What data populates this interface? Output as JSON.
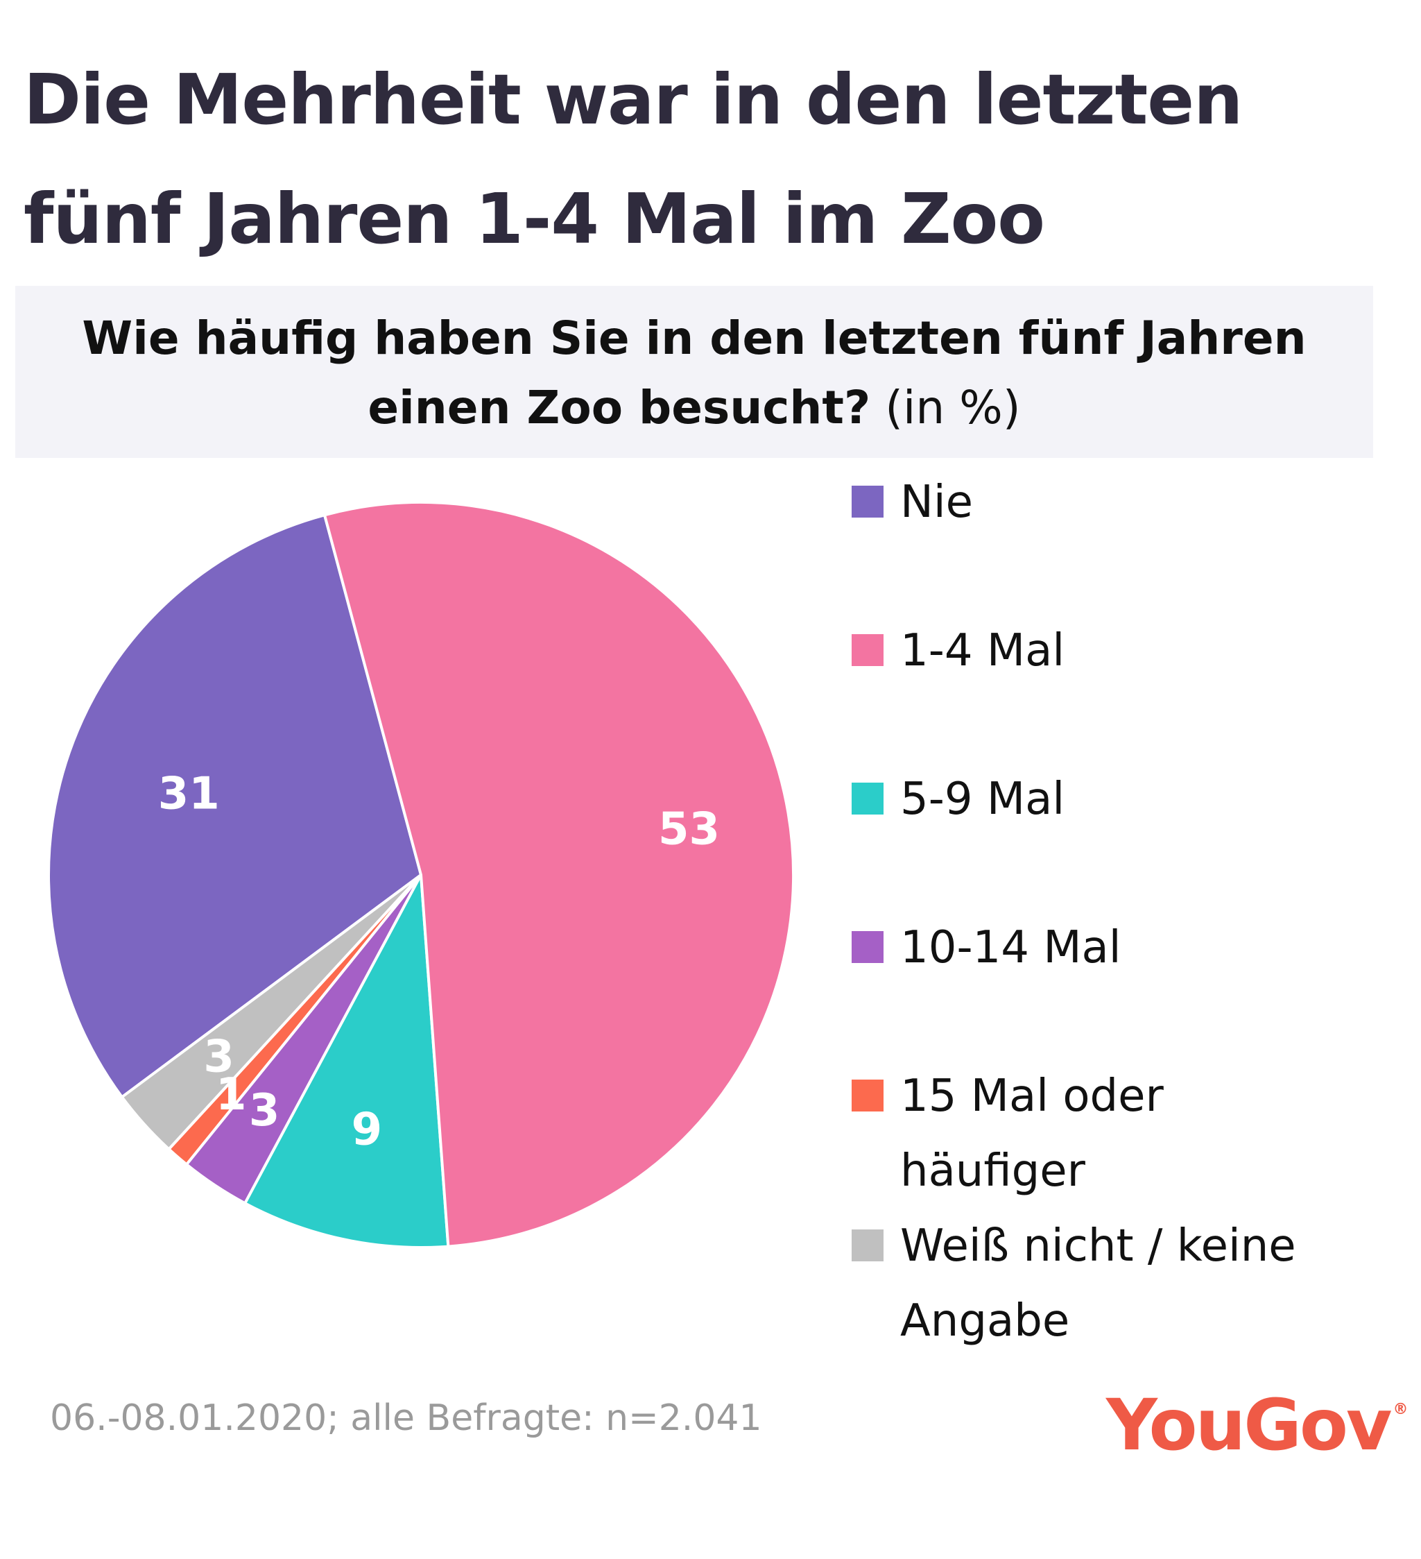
{
  "title": "Die Mehrheit war in den letzten fünf Jahren 1-4 Mal im Zoo",
  "question": {
    "text": "Wie häufig haben Sie in den letzten fünf Jahren einen Zoo besucht?",
    "unit": "(in %)"
  },
  "footer": "06.-08.01.2020; alle Befragte: n=2.041",
  "logo": {
    "text": "YouGov",
    "mark": "®"
  },
  "colors": {
    "nie": "#7c66c1",
    "1-4": "#f374a1",
    "5-9": "#2bcdc9",
    "10-14": "#a560c6",
    "15+": "#fc6a4e",
    "wn": "#c0c0c0"
  },
  "chart_data": {
    "type": "pie",
    "title": "Die Mehrheit war in den letzten fünf Jahren 1-4 Mal im Zoo",
    "subtitle": "Wie häufig haben Sie in den letzten fünf Jahren einen Zoo besucht? (in %)",
    "unit": "%",
    "legend_position": "right",
    "slices": [
      {
        "key": "nie",
        "label": "Nie",
        "value": 31,
        "color": "#7c66c1"
      },
      {
        "key": "1-4",
        "label": "1-4 Mal",
        "value": 53,
        "color": "#f374a1"
      },
      {
        "key": "5-9",
        "label": "5-9 Mal",
        "value": 9,
        "color": "#2bcdc9"
      },
      {
        "key": "10-14",
        "label": "10-14 Mal",
        "value": 3,
        "color": "#a560c6"
      },
      {
        "key": "15+",
        "label": "15 Mal oder häufiger",
        "value": 1,
        "color": "#fc6a4e"
      },
      {
        "key": "wn",
        "label": "Weiß nicht / keine Angabe",
        "value": 3,
        "color": "#c0c0c0"
      }
    ]
  }
}
